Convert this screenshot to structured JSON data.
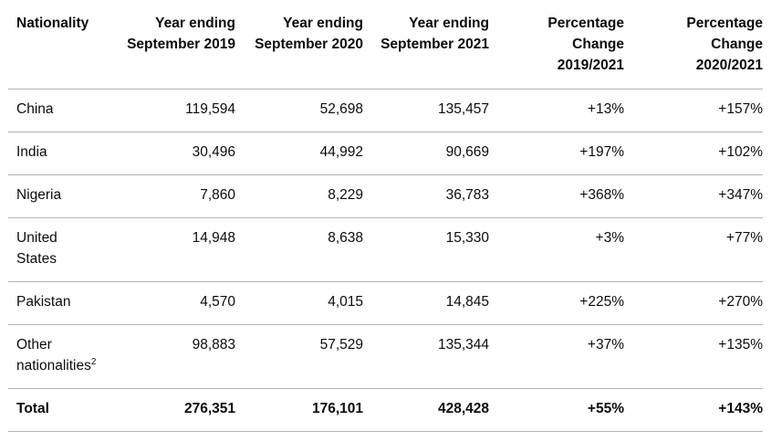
{
  "table": {
    "headers": [
      "Nationality",
      "Year ending September 2019",
      "Year ending September 2020",
      "Year ending September 2021",
      "Percentage Change 2019/2021",
      "Percentage Change 2020/2021"
    ],
    "header_lines": [
      [
        "Nationality"
      ],
      [
        "Year ending",
        "September 2019"
      ],
      [
        "Year ending",
        "September 2020"
      ],
      [
        "Year ending",
        "September 2021"
      ],
      [
        "Percentage",
        "Change",
        "2019/2021"
      ],
      [
        "Percentage",
        "Change",
        "2020/2021"
      ]
    ],
    "rows": [
      {
        "nationality": "China",
        "y2019": "119,594",
        "y2020": "52,698",
        "y2021": "135,457",
        "pct_2019_2021": "+13%",
        "pct_2020_2021": "+157%"
      },
      {
        "nationality": "India",
        "y2019": "30,496",
        "y2020": "44,992",
        "y2021": "90,669",
        "pct_2019_2021": "+197%",
        "pct_2020_2021": "+102%"
      },
      {
        "nationality": "Nigeria",
        "y2019": "7,860",
        "y2020": "8,229",
        "y2021": "36,783",
        "pct_2019_2021": "+368%",
        "pct_2020_2021": "+347%"
      },
      {
        "nationality_lines": [
          "United",
          "States"
        ],
        "y2019": "14,948",
        "y2020": "8,638",
        "y2021": "15,330",
        "pct_2019_2021": "+3%",
        "pct_2020_2021": "+77%"
      },
      {
        "nationality": "Pakistan",
        "y2019": "4,570",
        "y2020": "4,015",
        "y2021": "14,845",
        "pct_2019_2021": "+225%",
        "pct_2020_2021": "+270%"
      },
      {
        "nationality_lines": [
          "Other",
          "nationalities"
        ],
        "footnote": "2",
        "y2019": "98,883",
        "y2020": "57,529",
        "y2021": "135,344",
        "pct_2019_2021": "+37%",
        "pct_2020_2021": "+135%"
      }
    ],
    "total": {
      "label": "Total",
      "y2019": "276,351",
      "y2020": "176,101",
      "y2021": "428,428",
      "pct_2019_2021": "+55%",
      "pct_2020_2021": "+143%"
    }
  }
}
